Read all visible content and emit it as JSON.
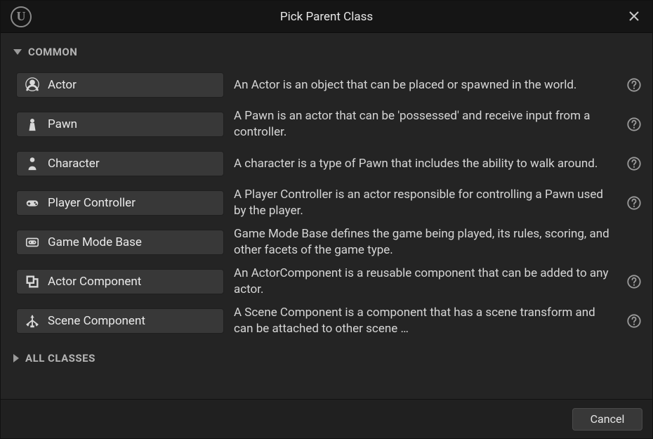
{
  "window": {
    "title": "Pick Parent Class",
    "logo_letter": "U"
  },
  "sections": {
    "common": {
      "label": "COMMON",
      "expanded": true
    },
    "all": {
      "label": "ALL CLASSES",
      "expanded": false
    }
  },
  "classes": [
    {
      "name": "Actor",
      "icon": "actor",
      "desc": "An Actor is an object that can be placed or spawned in the world.",
      "help": true
    },
    {
      "name": "Pawn",
      "icon": "pawn",
      "desc": "A Pawn is an actor that can be 'possessed' and receive input from a controller.",
      "help": true
    },
    {
      "name": "Character",
      "icon": "character",
      "desc": "A character is a type of Pawn that includes the ability to walk around.",
      "help": true
    },
    {
      "name": "Player Controller",
      "icon": "controller",
      "desc": "A Player Controller is an actor responsible for controlling a Pawn used by the player.",
      "help": true
    },
    {
      "name": "Game Mode Base",
      "icon": "gamemode",
      "desc": "Game Mode Base defines the game being played, its rules, scoring, and other facets of the game type.",
      "help": false
    },
    {
      "name": "Actor Component",
      "icon": "actor-component",
      "desc": "An ActorComponent is a reusable component that can be added to any actor.",
      "help": true
    },
    {
      "name": "Scene Component",
      "icon": "scene-component",
      "desc": "A Scene Component is a component that has a scene transform and can be attached to other scene …",
      "help": true
    }
  ],
  "footer": {
    "cancel": "Cancel"
  },
  "colors": {
    "bg": "#242424",
    "titlebar": "#151515",
    "button": "#383838",
    "text": "#d6d6d6"
  }
}
